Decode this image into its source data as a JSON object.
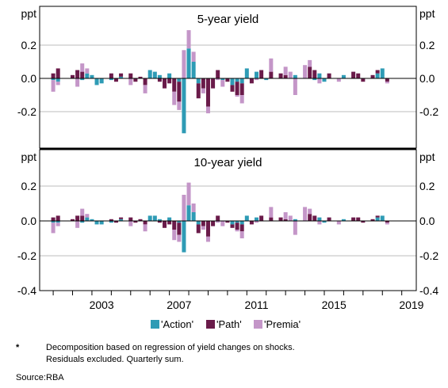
{
  "colors": {
    "action": "#2e9bb5",
    "path": "#6a1b4a",
    "premia": "#c496c8",
    "axis": "#000000",
    "grid": "#bdbdbd"
  },
  "chart_data": {
    "type": "bar",
    "stacked": true,
    "x_start": 2001.0,
    "x_step": 0.25,
    "xlim": [
      2000.3,
      2019.75
    ],
    "x_ticks": [
      "2003",
      "2007",
      "2011",
      "2015",
      "2019"
    ],
    "x_tick_values": [
      2003,
      2007,
      2011,
      2015,
      2019
    ],
    "unit": "ppt",
    "legend": {
      "position": "bottom",
      "items": [
        "'Action'",
        "'Path'",
        "'Premia'"
      ]
    },
    "panels": [
      {
        "title": "5-year yield",
        "ylim": [
          -0.4,
          0.4
        ],
        "y_ticks": [
          "0.2",
          "0.0",
          "-0.2"
        ],
        "y_tick_values": [
          0.2,
          0.0,
          -0.2
        ],
        "series": [
          {
            "name": "'Action'",
            "values": [
              -0.01,
              -0.02,
              0.0,
              0.0,
              0.0,
              0.0,
              -0.01,
              0.03,
              0.02,
              -0.04,
              -0.03,
              0.0,
              -0.01,
              0.0,
              0.01,
              0.0,
              0.0,
              0.0,
              0.0,
              0.0,
              0.05,
              0.04,
              0.02,
              0.0,
              0.03,
              0.0,
              -0.02,
              -0.33,
              0.18,
              0.1,
              -0.03,
              0.0,
              0.0,
              0.0,
              0.0,
              -0.01,
              0.0,
              -0.04,
              -0.02,
              -0.03,
              0.06,
              0.0,
              0.04,
              0.0,
              -0.01,
              0.0,
              0.0,
              0.0,
              0.0,
              0.0,
              0.02,
              0.0,
              0.0,
              0.0,
              -0.01,
              0.03,
              -0.02,
              0.0,
              0.0,
              0.0,
              0.02,
              0.0,
              0.0,
              0.0,
              0.0,
              0.0,
              0.0,
              0.03,
              0.06,
              0.0
            ]
          },
          {
            "name": "'Path'",
            "values": [
              0.03,
              0.06,
              0.0,
              0.0,
              0.02,
              0.05,
              0.04,
              0.0,
              0.0,
              0.0,
              0.0,
              0.0,
              0.03,
              -0.02,
              0.02,
              0.0,
              0.03,
              -0.02,
              0.01,
              -0.04,
              0.0,
              0.0,
              -0.02,
              -0.06,
              -0.03,
              -0.08,
              -0.12,
              0.0,
              0.0,
              0.0,
              -0.09,
              -0.06,
              -0.17,
              -0.06,
              0.05,
              0.0,
              -0.02,
              -0.04,
              -0.08,
              -0.07,
              0.0,
              -0.03,
              0.0,
              0.05,
              0.0,
              0.04,
              0.0,
              0.03,
              0.02,
              0.0,
              0.0,
              0.0,
              0.0,
              0.07,
              0.05,
              0.0,
              0.0,
              0.03,
              0.0,
              0.0,
              0.0,
              0.0,
              0.04,
              0.03,
              -0.02,
              0.0,
              0.02,
              0.02,
              0.0,
              -0.02
            ]
          },
          {
            "name": "'Premia'",
            "values": [
              -0.07,
              -0.02,
              0.0,
              0.0,
              0.0,
              -0.05,
              0.05,
              0.03,
              0.0,
              0.0,
              0.0,
              0.0,
              0.0,
              0.0,
              0.0,
              0.0,
              -0.04,
              0.0,
              0.0,
              -0.05,
              0.0,
              0.0,
              0.0,
              0.0,
              0.0,
              -0.08,
              -0.05,
              0.17,
              0.11,
              0.06,
              0.0,
              -0.03,
              -0.04,
              0.0,
              -0.01,
              -0.04,
              0.0,
              0.0,
              -0.01,
              -0.05,
              0.0,
              0.0,
              -0.01,
              0.0,
              0.0,
              0.08,
              0.0,
              0.0,
              0.05,
              0.04,
              -0.1,
              0.0,
              0.08,
              0.04,
              0.0,
              -0.03,
              0.0,
              0.0,
              0.0,
              -0.02,
              0.0,
              0.0,
              0.0,
              0.0,
              0.0,
              0.0,
              0.0,
              0.0,
              0.0,
              -0.01
            ]
          }
        ]
      },
      {
        "title": "10-year yield",
        "ylim": [
          -0.4,
          0.4
        ],
        "y_ticks": [
          "0.2",
          "0.0",
          "-0.2",
          "-0.4"
        ],
        "y_tick_values": [
          0.2,
          0.0,
          -0.2,
          -0.4
        ],
        "series": [
          {
            "name": "'Action'",
            "values": [
              -0.01,
              -0.01,
              0.0,
              0.0,
              0.0,
              0.0,
              -0.01,
              0.02,
              0.01,
              -0.02,
              -0.02,
              0.0,
              -0.01,
              0.0,
              0.01,
              0.0,
              0.0,
              0.0,
              0.0,
              0.0,
              0.03,
              0.03,
              0.01,
              0.0,
              0.02,
              0.0,
              -0.01,
              -0.18,
              0.09,
              0.05,
              -0.02,
              0.0,
              0.0,
              0.0,
              0.0,
              0.0,
              0.0,
              -0.02,
              -0.01,
              -0.02,
              0.03,
              0.0,
              0.02,
              0.0,
              0.0,
              0.0,
              0.0,
              0.0,
              0.0,
              0.0,
              0.01,
              0.0,
              0.0,
              0.0,
              0.0,
              0.02,
              -0.01,
              0.0,
              0.0,
              0.0,
              0.01,
              0.0,
              0.0,
              0.0,
              0.0,
              0.0,
              0.0,
              0.02,
              0.03,
              0.0
            ]
          },
          {
            "name": "'Path'",
            "values": [
              0.02,
              0.03,
              0.0,
              0.0,
              0.01,
              0.03,
              0.03,
              0.0,
              0.0,
              0.0,
              0.0,
              0.0,
              0.01,
              -0.01,
              0.01,
              0.0,
              0.02,
              -0.01,
              0.01,
              -0.02,
              0.0,
              0.0,
              -0.01,
              -0.04,
              -0.02,
              -0.05,
              -0.07,
              0.0,
              0.0,
              0.0,
              -0.05,
              -0.03,
              -0.09,
              -0.03,
              0.03,
              0.0,
              -0.01,
              -0.02,
              -0.04,
              -0.04,
              0.0,
              -0.02,
              0.0,
              0.03,
              0.0,
              0.02,
              0.0,
              0.02,
              0.01,
              0.0,
              0.0,
              0.0,
              0.0,
              0.04,
              0.03,
              0.0,
              0.0,
              0.02,
              0.0,
              0.0,
              0.0,
              0.0,
              0.02,
              0.02,
              -0.01,
              0.0,
              0.01,
              0.01,
              0.0,
              -0.01
            ]
          },
          {
            "name": "'Premia'",
            "values": [
              -0.06,
              -0.02,
              0.0,
              0.0,
              0.0,
              -0.04,
              0.04,
              0.02,
              0.0,
              0.0,
              0.0,
              0.0,
              0.0,
              0.0,
              0.0,
              0.0,
              -0.03,
              0.0,
              0.0,
              -0.04,
              0.0,
              0.0,
              0.0,
              0.0,
              0.0,
              -0.06,
              -0.04,
              0.15,
              0.13,
              0.05,
              0.0,
              -0.02,
              -0.03,
              0.0,
              -0.01,
              -0.03,
              0.0,
              0.0,
              -0.01,
              -0.04,
              0.0,
              0.0,
              -0.01,
              0.0,
              0.0,
              0.06,
              0.0,
              0.0,
              0.04,
              0.03,
              -0.08,
              0.0,
              0.08,
              0.03,
              0.0,
              -0.02,
              0.0,
              0.0,
              0.0,
              -0.02,
              0.0,
              0.0,
              0.0,
              0.0,
              0.0,
              0.0,
              0.0,
              0.0,
              0.0,
              -0.01
            ]
          }
        ]
      }
    ]
  },
  "notes": {
    "footnote_mark": "*",
    "footnote_line1": "Decomposition based on regression of yield changes on shocks.",
    "footnote_line2": "Residuals excluded. Quarterly sum.",
    "source_label": "Source:",
    "source_value": "RBA"
  }
}
